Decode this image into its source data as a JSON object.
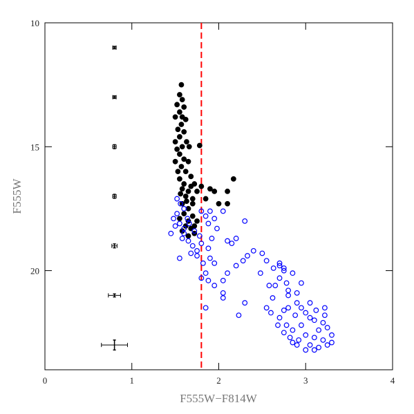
{
  "chart_data": {
    "type": "scatter",
    "x_label": "F555W−F814W",
    "y_label": "F555W",
    "xlim": [
      0,
      4
    ],
    "ylim": [
      24,
      10
    ],
    "xticks": [
      0,
      1,
      2,
      3,
      4
    ],
    "yticks": [
      10,
      15,
      20
    ],
    "vline": {
      "value": 1.8,
      "color": "#ff0000"
    },
    "error_bars": {
      "color": "#000000",
      "x": [
        0.8,
        0.8,
        0.8,
        0.8,
        0.8,
        0.8,
        0.8
      ],
      "y": [
        11,
        13,
        15,
        17,
        19,
        21,
        23
      ],
      "xerr": [
        0.02,
        0.02,
        0.02,
        0.02,
        0.03,
        0.07,
        0.15
      ],
      "yerr": [
        0.05,
        0.05,
        0.08,
        0.08,
        0.08,
        0.06,
        0.2
      ]
    },
    "series": [
      {
        "color": "#000000",
        "filled": true,
        "x": [
          1.57,
          1.55,
          1.58,
          1.52,
          1.6,
          1.55,
          1.5,
          1.62,
          1.57,
          1.53,
          1.6,
          1.55,
          1.5,
          1.63,
          1.58,
          1.52,
          1.66,
          1.78,
          1.55,
          1.6,
          1.5,
          1.65,
          1.57,
          1.53,
          1.62,
          1.68,
          1.55,
          1.6,
          1.72,
          1.8,
          1.58,
          1.65,
          1.75,
          1.9,
          1.95,
          2.1,
          2.17,
          1.62,
          1.7,
          1.85,
          2.0,
          2.1,
          1.58,
          1.65,
          1.6,
          1.7,
          1.55,
          1.65,
          1.75,
          1.62,
          1.68,
          1.58,
          1.72,
          1.65,
          1.58,
          1.7,
          1.63,
          1.68,
          1.56,
          1.72
        ],
        "y": [
          12.5,
          12.9,
          13.1,
          13.3,
          13.4,
          13.6,
          13.8,
          13.9,
          14.1,
          14.3,
          14.4,
          14.6,
          14.8,
          14.8,
          15.0,
          15.1,
          15.0,
          14.95,
          15.3,
          15.5,
          15.6,
          15.6,
          15.8,
          16.0,
          16.0,
          16.2,
          16.3,
          16.5,
          16.5,
          16.6,
          16.7,
          16.8,
          16.8,
          16.7,
          16.8,
          16.8,
          16.3,
          17.0,
          17.1,
          17.1,
          17.3,
          17.3,
          17.3,
          17.5,
          17.7,
          17.8,
          17.9,
          18.0,
          18.0,
          18.2,
          18.3,
          18.4,
          18.5,
          18.6,
          13.8,
          17.3,
          17.2,
          16.6,
          16.9,
          18.2
        ]
      },
      {
        "color": "#0000ff",
        "filled": false,
        "x": [
          1.52,
          1.56,
          1.6,
          1.52,
          1.64,
          1.55,
          1.6,
          1.66,
          1.72,
          1.78,
          1.58,
          1.65,
          1.7,
          1.75,
          1.6,
          1.8,
          1.85,
          1.9,
          1.95,
          1.88,
          1.98,
          2.05,
          1.8,
          1.88,
          1.92,
          2.1,
          2.2,
          2.3,
          2.15,
          1.75,
          1.82,
          1.9,
          1.95,
          1.85,
          1.8,
          1.88,
          1.95,
          2.05,
          2.1,
          2.2,
          2.28,
          2.33,
          2.4,
          2.5,
          2.55,
          2.48,
          2.63,
          2.7,
          2.75,
          2.7,
          2.78,
          2.65,
          2.8,
          2.9,
          2.58,
          2.85,
          2.8,
          2.9,
          2.95,
          3.0,
          3.05,
          2.88,
          2.75,
          2.7,
          2.78,
          2.85,
          2.95,
          3.1,
          3.2,
          3.15,
          3.25,
          3.0,
          3.1,
          2.92,
          3.05,
          3.2,
          3.3,
          3.15,
          3.25,
          2.85,
          3.0,
          2.75,
          3.12,
          3.22,
          2.62,
          2.55,
          2.6,
          2.3,
          2.05,
          1.85,
          2.23,
          2.05,
          1.68,
          1.55,
          1.45,
          1.5,
          1.48,
          3.05,
          2.95,
          3.3,
          2.9,
          2.75,
          2.82,
          3.1,
          3.22,
          2.68,
          2.7,
          2.8
        ],
        "y": [
          17.1,
          17.3,
          17.5,
          17.7,
          17.9,
          18.1,
          18.3,
          18.1,
          18.4,
          18.6,
          18.7,
          18.8,
          19.0,
          19.2,
          18.5,
          17.6,
          17.8,
          17.6,
          17.9,
          18.1,
          18.3,
          17.6,
          18.9,
          19.1,
          18.7,
          18.8,
          18.7,
          18.0,
          18.9,
          19.4,
          19.7,
          19.5,
          19.7,
          20.1,
          20.3,
          20.4,
          20.6,
          20.4,
          20.1,
          19.8,
          19.6,
          19.4,
          19.2,
          19.3,
          19.6,
          20.1,
          19.9,
          19.7,
          19.9,
          20.3,
          20.5,
          20.6,
          20.8,
          20.9,
          20.6,
          20.1,
          21.0,
          21.3,
          21.5,
          21.7,
          21.9,
          21.8,
          21.6,
          21.9,
          22.2,
          22.4,
          22.2,
          22.0,
          22.1,
          22.4,
          22.3,
          22.6,
          22.7,
          22.8,
          23.0,
          22.8,
          22.6,
          23.1,
          23.0,
          22.9,
          23.2,
          22.5,
          21.6,
          21.8,
          21.1,
          21.5,
          21.7,
          21.3,
          21.1,
          21.5,
          21.8,
          20.9,
          19.3,
          19.5,
          18.5,
          18.2,
          17.9,
          21.3,
          20.5,
          22.9,
          23.0,
          20.0,
          22.7,
          23.2,
          21.5,
          22.2,
          19.8,
          21.5
        ]
      }
    ]
  }
}
